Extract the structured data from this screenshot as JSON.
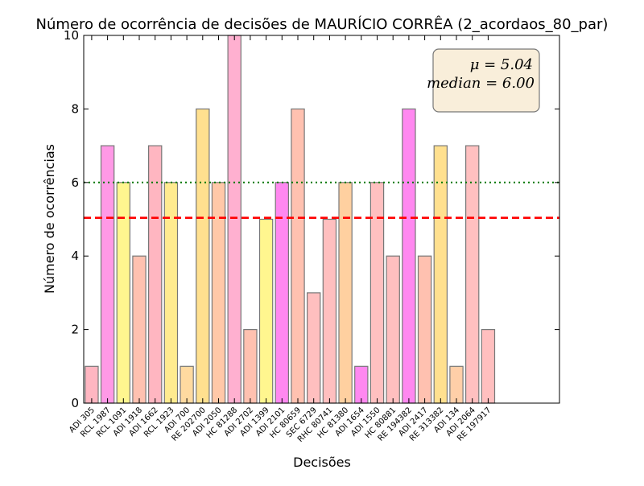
{
  "chart_data": {
    "type": "bar",
    "title": "Número de ocorrência de decisões de MAURÍCIO CORRÊA (2_acordaos_80_par)",
    "xlabel": "Decisões",
    "ylabel": "Número de ocorrências",
    "ylim": [
      0,
      10
    ],
    "yticks": [
      0,
      2,
      4,
      6,
      8,
      10
    ],
    "categories": [
      "ADI 305",
      "RCL 1987",
      "RCL 1091",
      "ADI 1918",
      "ADI 1662",
      "RCL 1923",
      "ADI 700",
      "RE 202700",
      "ADI 2050",
      "HC 81288",
      "ADI 2702",
      "ADI 1399",
      "ADI 2101",
      "HC 80659",
      "SEC 6729",
      "RHC 80741",
      "HC 81380",
      "ADI 1654",
      "ADI 1550",
      "HC 80881",
      "RE 194382",
      "ADI 2417",
      "RE 313382",
      "ADI 134",
      "ADI 2064",
      "RE 197917"
    ],
    "values": [
      1,
      7,
      6,
      4,
      7,
      6,
      1,
      8,
      6,
      10,
      2,
      5,
      6,
      8,
      3,
      5,
      6,
      1,
      6,
      4,
      8,
      4,
      7,
      1,
      7,
      2
    ],
    "bar_colors": [
      "#ffb6c1",
      "#ff99e6",
      "#fff68f",
      "#ffc1b0",
      "#ffb6c1",
      "#ffeb8f",
      "#ffdaa0",
      "#ffe08f",
      "#ffc8a8",
      "#ffb0d0",
      "#ffc1b0",
      "#fff68f",
      "#ff88f0",
      "#ffc1b0",
      "#ffbfbf",
      "#ffbfbf",
      "#ffd0a0",
      "#ff88f0",
      "#ffc0c0",
      "#ffbfbf",
      "#ff88f0",
      "#ffc1b0",
      "#ffe08f",
      "#ffcfa8",
      "#ffc0c0",
      "#ffbfbf"
    ],
    "reference_lines": [
      {
        "value": 5.04,
        "style": "dashed",
        "color": "#ff0000"
      },
      {
        "value": 6.0,
        "style": "dotted",
        "color": "#007700"
      }
    ],
    "stats_box": {
      "mean_label": "μ = 5.04",
      "median_label": "median = 6.00"
    },
    "grid": false,
    "bar_edge_color": "#777777",
    "stats_box_color": "#f9eeda"
  }
}
